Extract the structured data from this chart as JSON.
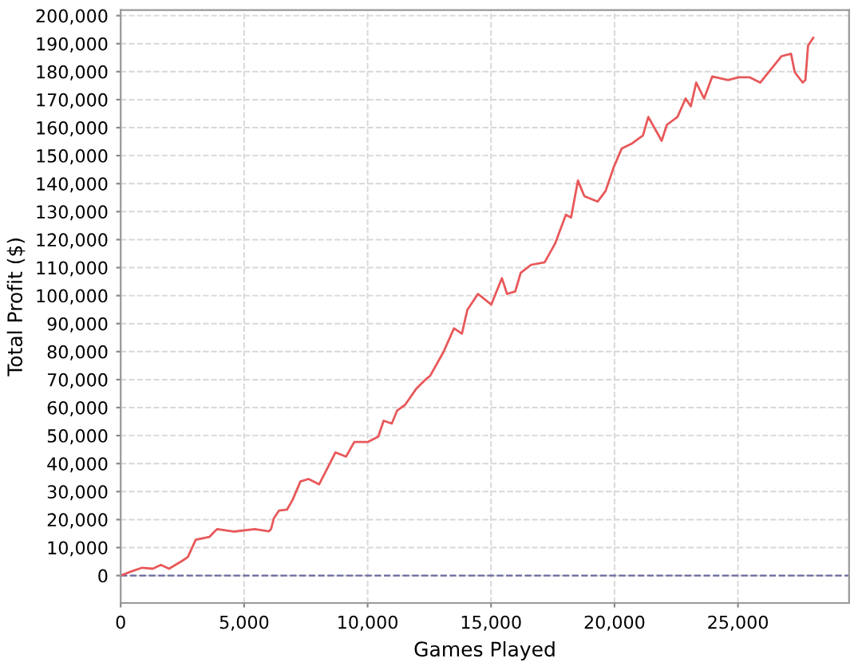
{
  "chart_data": {
    "type": "line",
    "xlabel": "Games Played",
    "ylabel": "Total Profit ($)",
    "xlim": [
      0,
      29500
    ],
    "ylim": [
      -9800,
      202000
    ],
    "xticks": [
      {
        "value": 0,
        "label": "0"
      },
      {
        "value": 5000,
        "label": "5,000"
      },
      {
        "value": 10000,
        "label": "10,000"
      },
      {
        "value": 15000,
        "label": "15,000"
      },
      {
        "value": 20000,
        "label": "20,000"
      },
      {
        "value": 25000,
        "label": "25,000"
      }
    ],
    "yticks": [
      {
        "value": 0,
        "label": "0"
      },
      {
        "value": 10000,
        "label": "10,000"
      },
      {
        "value": 20000,
        "label": "20,000"
      },
      {
        "value": 30000,
        "label": "30,000"
      },
      {
        "value": 40000,
        "label": "40,000"
      },
      {
        "value": 50000,
        "label": "50,000"
      },
      {
        "value": 60000,
        "label": "60,000"
      },
      {
        "value": 70000,
        "label": "70,000"
      },
      {
        "value": 80000,
        "label": "80,000"
      },
      {
        "value": 90000,
        "label": "90,000"
      },
      {
        "value": 100000,
        "label": "100,000"
      },
      {
        "value": 110000,
        "label": "110,000"
      },
      {
        "value": 120000,
        "label": "120,000"
      },
      {
        "value": 130000,
        "label": "130,000"
      },
      {
        "value": 140000,
        "label": "140,000"
      },
      {
        "value": 150000,
        "label": "150,000"
      },
      {
        "value": 160000,
        "label": "160,000"
      },
      {
        "value": 170000,
        "label": "170,000"
      },
      {
        "value": 180000,
        "label": "180,000"
      },
      {
        "value": 190000,
        "label": "190,000"
      },
      {
        "value": 200000,
        "label": "200,000"
      }
    ],
    "grid": true,
    "line_style": "solid",
    "marker": "none",
    "ref_lines": [
      {
        "axis": "y",
        "value": 0,
        "color": "#6a6aa0",
        "line_style": "dashed"
      }
    ],
    "series": [
      {
        "color": "#e8585a",
        "x": [
          0,
          435,
          870,
          1300,
          1630,
          1960,
          2500,
          2720,
          3040,
          3590,
          3800,
          3910,
          4570,
          5430,
          6000,
          6090,
          6200,
          6410,
          6740,
          6960,
          7280,
          7610,
          8040,
          8370,
          8700,
          9130,
          9460,
          10000,
          10220,
          10430,
          10650,
          10980,
          11200,
          11520,
          11960,
          12390,
          12530,
          13070,
          13500,
          13820,
          14040,
          14470,
          15010,
          15440,
          15650,
          15980,
          16200,
          16620,
          17170,
          17590,
          18030,
          18240,
          18520,
          18780,
          19320,
          19640,
          19970,
          20290,
          20720,
          21150,
          21370,
          21910,
          22120,
          22550,
          22880,
          23090,
          23310,
          23630,
          23960,
          24600,
          25030,
          25460,
          25900,
          26330,
          26760,
          27150,
          27300,
          27620,
          27730,
          27840,
          28050
        ],
        "values": [
          0,
          1500,
          2800,
          2450,
          3800,
          2450,
          5300,
          6600,
          12800,
          13800,
          15700,
          16600,
          15700,
          16600,
          15800,
          16600,
          20400,
          23200,
          23600,
          27000,
          33600,
          34500,
          32600,
          38300,
          44000,
          42500,
          47700,
          47700,
          48700,
          49600,
          55300,
          54300,
          59000,
          61000,
          66600,
          70400,
          71300,
          79800,
          88300,
          86400,
          94900,
          100600,
          96800,
          106200,
          100600,
          101500,
          108100,
          111000,
          111900,
          118500,
          128900,
          127900,
          141100,
          135500,
          133600,
          137400,
          145900,
          152500,
          154400,
          157200,
          163800,
          155300,
          161000,
          163800,
          170400,
          167600,
          176100,
          170400,
          178300,
          177000,
          178000,
          178000,
          176100,
          180800,
          185500,
          186400,
          179800,
          176100,
          177000,
          189300,
          192100
        ]
      }
    ]
  }
}
